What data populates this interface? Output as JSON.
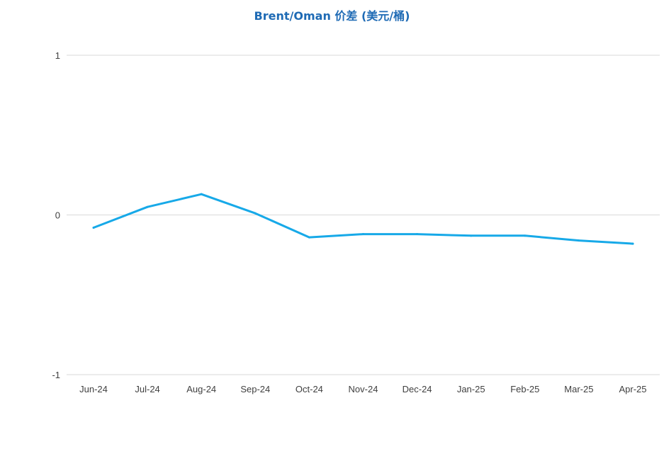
{
  "chart_data": {
    "type": "line",
    "title": "Brent/Oman 价差 (美元/桶)",
    "xlabel": "",
    "ylabel": "",
    "categories": [
      "Jun-24",
      "Jul-24",
      "Aug-24",
      "Sep-24",
      "Oct-24",
      "Nov-24",
      "Dec-24",
      "Jan-25",
      "Feb-25",
      "Mar-25",
      "Apr-25"
    ],
    "series": [
      {
        "values": [
          -0.08,
          0.05,
          0.13,
          0.01,
          -0.14,
          -0.12,
          -0.12,
          -0.13,
          -0.13,
          -0.16,
          -0.18
        ],
        "color": "#17a9e8"
      }
    ],
    "ylim": [
      -1,
      1
    ],
    "yticks": [
      "1",
      "0",
      "-1"
    ],
    "grid": true,
    "legend": "none"
  }
}
